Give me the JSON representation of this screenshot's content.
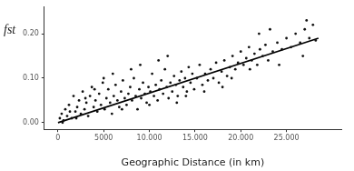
{
  "chart_data": {
    "type": "scatter",
    "x_label": "Geographic Distance (in km)",
    "y_label": "fst",
    "xlim": [
      -1500,
      31000
    ],
    "ylim": [
      -0.015,
      0.26
    ],
    "xticks": [
      0,
      5000,
      {
        "value": 10000,
        "label": "10.000"
      },
      {
        "value": 15000,
        "label": "15.000"
      },
      {
        "value": 20000,
        "label": "20.000"
      },
      {
        "value": 25000,
        "label": "25.000"
      }
    ],
    "yticks": [
      {
        "value": 0,
        "label": "0.00"
      },
      {
        "value": 0.1,
        "label": "0.10"
      },
      {
        "value": 0.2,
        "label": "0.20"
      }
    ],
    "grid": false,
    "series": [
      {
        "type": "scatter",
        "marker": "circle",
        "color": "#111111",
        "x": [
          200,
          400,
          600,
          800,
          1000,
          1200,
          1500,
          1700,
          1900,
          2100,
          2300,
          2500,
          2700,
          2900,
          3100,
          3300,
          3500,
          3700,
          3900,
          4100,
          4300,
          4500,
          4700,
          4900,
          5100,
          5300,
          5500,
          5700,
          5900,
          6100,
          6300,
          6500,
          6700,
          6900,
          7100,
          7300,
          7500,
          7700,
          7900,
          8100,
          8300,
          8500,
          8700,
          8900,
          9100,
          9300,
          9500,
          9700,
          9900,
          10100,
          10300,
          10500,
          10700,
          10900,
          11100,
          11300,
          11500,
          11700,
          11900,
          12100,
          12300,
          12500,
          12700,
          12900,
          13100,
          13300,
          13500,
          13700,
          13900,
          14100,
          14300,
          14500,
          14700,
          14900,
          15200,
          15500,
          15800,
          16100,
          16400,
          16700,
          17000,
          17300,
          17600,
          17900,
          18200,
          18500,
          18800,
          19100,
          19400,
          19700,
          20000,
          20300,
          20600,
          20900,
          21200,
          21500,
          21800,
          22100,
          22400,
          22700,
          23000,
          23500,
          24000,
          24500,
          25000,
          25500,
          26000,
          26500,
          27000,
          27500,
          27200,
          27900,
          28200,
          500,
          1300,
          2000,
          3000,
          4000,
          5000,
          6000,
          7000,
          8000,
          9000,
          10000,
          11000,
          12000,
          13000,
          14000,
          16000,
          18000,
          19000,
          21000,
          22000,
          23200,
          24200,
          26800
        ],
        "values": [
          0.01,
          0.02,
          0.005,
          0.03,
          0.015,
          0.04,
          0.01,
          0.06,
          0.025,
          0.035,
          0.05,
          0.02,
          0.07,
          0.03,
          0.045,
          0.015,
          0.06,
          0.08,
          0.035,
          0.05,
          0.025,
          0.065,
          0.04,
          0.09,
          0.03,
          0.055,
          0.075,
          0.045,
          0.02,
          0.06,
          0.085,
          0.05,
          0.035,
          0.07,
          0.095,
          0.055,
          0.04,
          0.065,
          0.08,
          0.05,
          0.1,
          0.06,
          0.03,
          0.075,
          0.055,
          0.09,
          0.065,
          0.045,
          0.08,
          0.07,
          0.11,
          0.06,
          0.085,
          0.05,
          0.075,
          0.095,
          0.065,
          0.12,
          0.08,
          0.055,
          0.09,
          0.07,
          0.105,
          0.085,
          0.06,
          0.095,
          0.115,
          0.08,
          0.1,
          0.07,
          0.125,
          0.09,
          0.11,
          0.075,
          0.1,
          0.13,
          0.085,
          0.11,
          0.095,
          0.12,
          0.1,
          0.135,
          0.09,
          0.115,
          0.14,
          0.105,
          0.125,
          0.15,
          0.12,
          0.135,
          0.16,
          0.13,
          0.145,
          0.17,
          0.14,
          0.155,
          0.13,
          0.165,
          0.15,
          0.175,
          0.14,
          0.16,
          0.18,
          0.165,
          0.19,
          0.17,
          0.2,
          0.18,
          0.21,
          0.19,
          0.23,
          0.22,
          0.185,
          0,
          0.025,
          0.01,
          0.055,
          0.075,
          0.1,
          0.11,
          0.03,
          0.12,
          0.13,
          0.04,
          0.14,
          0.15,
          0.045,
          0.06,
          0.07,
          0.08,
          0.1,
          0.12,
          0.2,
          0.21,
          0.13,
          0.15
        ]
      },
      {
        "type": "line",
        "line_style": "solid",
        "color": "#000000",
        "x": [
          0,
          28500
        ],
        "values": [
          0,
          0.19
        ]
      }
    ]
  }
}
